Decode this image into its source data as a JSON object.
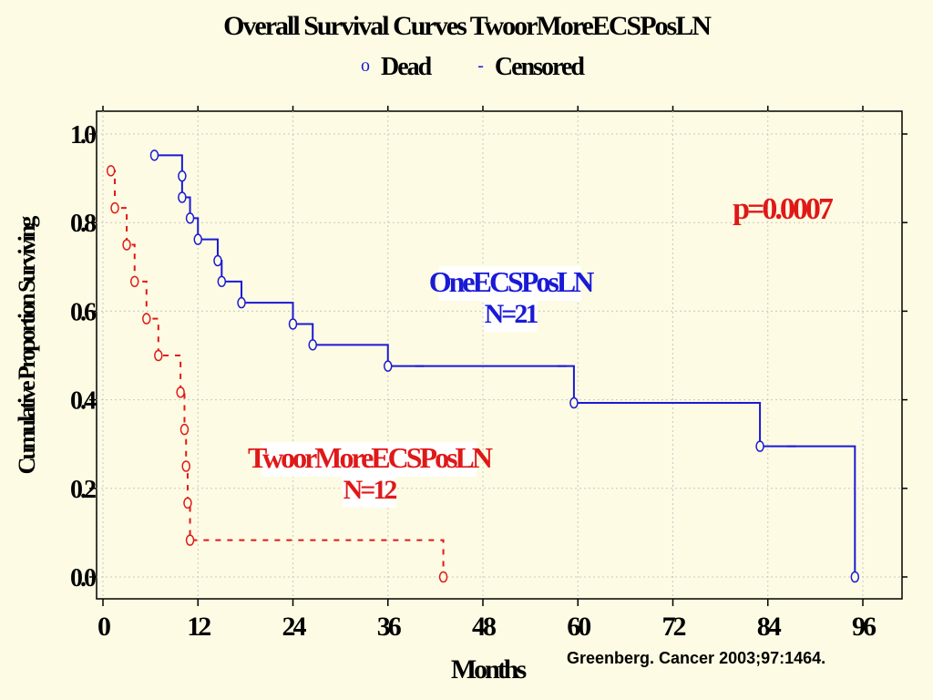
{
  "chart_data": {
    "type": "line",
    "title": "Overall Survival Curves TwoorMoreECSPosLN",
    "legend": {
      "dead_symbol": "o",
      "dead_label": "Dead",
      "censored_symbol": "-",
      "censored_label": "Censored"
    },
    "xlabel": "Months",
    "ylabel": "Cumulative Proportion Surviving",
    "xlim": [
      0,
      98
    ],
    "ylim": [
      0,
      1.0
    ],
    "x_ticks": [
      0,
      12,
      24,
      36,
      48,
      60,
      72,
      84,
      96
    ],
    "x_tick_labels": [
      "0",
      "12",
      "24",
      "36",
      "48",
      "60",
      "72",
      "84",
      "96"
    ],
    "y_ticks": [
      0.0,
      0.2,
      0.4,
      0.6,
      0.8,
      1.0
    ],
    "y_tick_labels": [
      "0.0",
      "0.2",
      "0.4",
      "0.6",
      "0.8",
      "1.0"
    ],
    "grid": true,
    "series": [
      {
        "name": "OneECSPosLN",
        "n_label": "N=21",
        "color": "#1a1ad6",
        "line_style": "solid",
        "steps": [
          [
            6.5,
            0.952
          ],
          [
            10.0,
            0.905
          ],
          [
            10.0,
            0.857
          ],
          [
            11.0,
            0.81
          ],
          [
            12.0,
            0.762
          ],
          [
            14.5,
            0.714
          ],
          [
            15.0,
            0.667
          ],
          [
            17.5,
            0.619
          ],
          [
            24.0,
            0.571
          ],
          [
            26.5,
            0.524
          ],
          [
            36.0,
            0.476
          ],
          [
            59.5,
            0.393
          ],
          [
            83.0,
            0.295
          ],
          [
            95.0,
            0.0
          ]
        ],
        "dead_markers": [
          [
            6.5,
            0.952
          ],
          [
            10.0,
            0.905
          ],
          [
            10.0,
            0.857
          ],
          [
            11.0,
            0.81
          ],
          [
            12.0,
            0.762
          ],
          [
            14.5,
            0.714
          ],
          [
            15.0,
            0.667
          ],
          [
            17.5,
            0.619
          ],
          [
            24.0,
            0.571
          ],
          [
            26.5,
            0.524
          ],
          [
            36.0,
            0.476
          ],
          [
            59.5,
            0.393
          ],
          [
            83.0,
            0.295
          ],
          [
            95.0,
            0.0
          ]
        ],
        "censored": [
          [
            40.0,
            0.476
          ],
          [
            58.0,
            0.476
          ],
          [
            78.0,
            0.393
          ],
          [
            87.0,
            0.295
          ]
        ]
      },
      {
        "name": "TwoorMoreECSPosLN",
        "n_label": "N=12",
        "color": "#e01818",
        "line_style": "dashed",
        "steps": [
          [
            1.0,
            0.917
          ],
          [
            1.5,
            0.833
          ],
          [
            3.0,
            0.75
          ],
          [
            4.0,
            0.667
          ],
          [
            5.5,
            0.583
          ],
          [
            7.0,
            0.5
          ],
          [
            9.8,
            0.417
          ],
          [
            10.3,
            0.333
          ],
          [
            10.5,
            0.25
          ],
          [
            10.7,
            0.167
          ],
          [
            11.0,
            0.083
          ],
          [
            43.0,
            0.0
          ]
        ],
        "dead_markers": [
          [
            1.0,
            0.917
          ],
          [
            1.5,
            0.833
          ],
          [
            3.0,
            0.75
          ],
          [
            4.0,
            0.667
          ],
          [
            5.5,
            0.583
          ],
          [
            7.0,
            0.5
          ],
          [
            9.8,
            0.417
          ],
          [
            10.3,
            0.333
          ],
          [
            10.5,
            0.25
          ],
          [
            10.7,
            0.167
          ],
          [
            11.0,
            0.083
          ],
          [
            43.0,
            0.0
          ]
        ],
        "censored": []
      }
    ],
    "annotations": {
      "p_value": "p=0.0007",
      "blue_label": "OneECSPosLN",
      "blue_n": "N=21",
      "red_label": "TwoorMoreECSPosLN",
      "red_n": "N=12"
    }
  },
  "citation": "Greenberg. Cancer 2003;97:1464."
}
